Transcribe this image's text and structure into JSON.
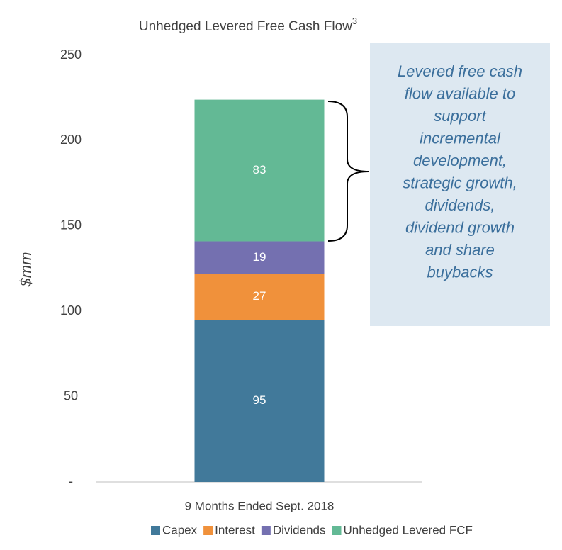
{
  "chart_data": {
    "type": "stacked_bar",
    "title": "Unhedged Levered Free Cash Flow",
    "title_superscript": "3",
    "ylabel": "$mm",
    "categories": [
      "9 Months Ended Sept. 2018"
    ],
    "series": [
      {
        "name": "Capex",
        "color": "#41799a",
        "values": [
          95
        ]
      },
      {
        "name": "Interest",
        "color": "#f0913b",
        "values": [
          27
        ]
      },
      {
        "name": "Dividends",
        "color": "#7470b0",
        "values": [
          19
        ]
      },
      {
        "name": "Unhedged Levered FCF",
        "color": "#63b995",
        "values": [
          83
        ]
      }
    ],
    "ylim": [
      0,
      250
    ],
    "yticks": [
      {
        "value": 0,
        "label": "-"
      },
      50,
      100,
      150,
      200,
      250
    ],
    "grid": false,
    "legend": "bottom",
    "annotation_lines": [
      "Levered free cash",
      "flow available to",
      "support",
      "incremental",
      "development,",
      "strategic growth,",
      "dividends,",
      "dividend growth",
      "and share",
      "buybacks"
    ]
  }
}
